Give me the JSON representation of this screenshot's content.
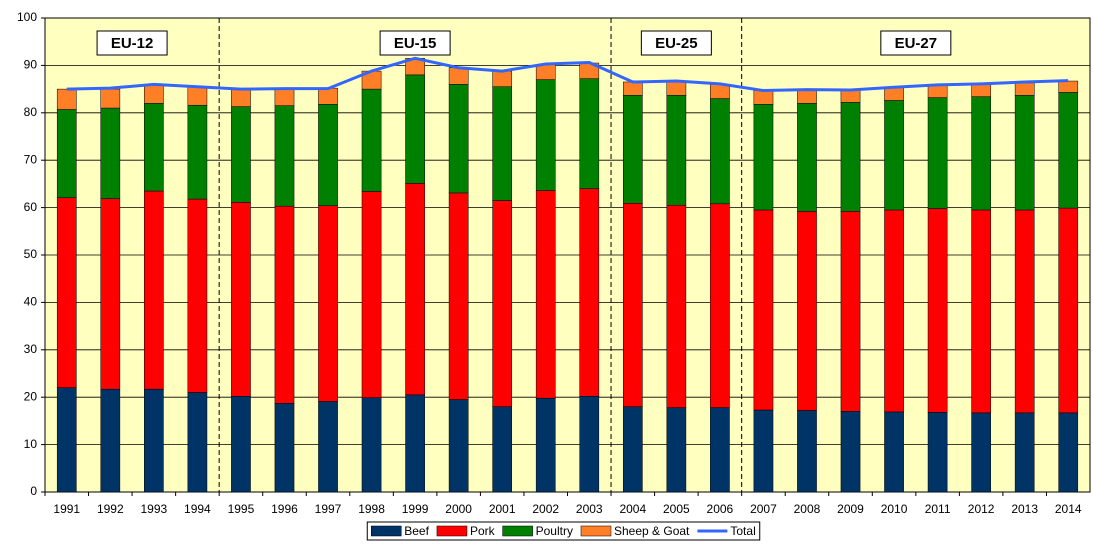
{
  "chart_data": {
    "type": "bar",
    "stacked": true,
    "categories": [
      "1991",
      "1992",
      "1993",
      "1994",
      "1995",
      "1996",
      "1997",
      "1998",
      "1999",
      "2000",
      "2001",
      "2002",
      "2003",
      "2004",
      "2005",
      "2006",
      "2007",
      "2008",
      "2009",
      "2010",
      "2011",
      "2012",
      "2013",
      "2014"
    ],
    "series": [
      {
        "name": "Beef",
        "color": "#003366",
        "values": [
          22,
          21.7,
          21.7,
          21,
          20.2,
          18.7,
          19.1,
          19.9,
          20.5,
          19.5,
          18,
          19.8,
          20.2,
          18,
          17.8,
          17.8,
          17.3,
          17.2,
          17,
          16.9,
          16.8,
          16.7,
          16.7,
          16.7
        ]
      },
      {
        "name": "Pork",
        "color": "#ff0000",
        "values": [
          40.1,
          40.2,
          41.8,
          40.8,
          40.9,
          41.6,
          41.3,
          43.5,
          44.6,
          43.6,
          43.5,
          43.8,
          43.8,
          42.9,
          42.7,
          43,
          42.2,
          42,
          42.2,
          42.6,
          43,
          42.8,
          42.8,
          43.2
        ]
      },
      {
        "name": "Poultry",
        "color": "#008000",
        "values": [
          18.6,
          19.1,
          18.5,
          19.8,
          20.2,
          21.2,
          21.4,
          21.6,
          22.9,
          22.9,
          24,
          23.4,
          23.2,
          22.8,
          23.2,
          22.2,
          22.3,
          22.8,
          23,
          23.1,
          23.4,
          23.9,
          24.2,
          24.4
        ]
      },
      {
        "name": "Sheep & Goat",
        "color": "#ff7f27",
        "values": [
          4.3,
          4,
          4,
          3.9,
          3.7,
          3.5,
          3.4,
          3.8,
          3.5,
          3.5,
          3.3,
          3.2,
          3.3,
          2.8,
          2.8,
          3,
          2.9,
          2.8,
          2.6,
          2.7,
          2.6,
          2.6,
          2.6,
          2.4
        ]
      },
      {
        "name": "Total",
        "type": "line",
        "color": "#3366ff",
        "values": [
          85,
          85.2,
          86,
          85.5,
          85,
          85.1,
          85.1,
          88.8,
          91.5,
          89.5,
          88.8,
          90.3,
          90.6,
          86.5,
          86.7,
          86.1,
          84.7,
          84.9,
          84.8,
          85.4,
          85.9,
          86.1,
          86.5,
          86.8
        ]
      }
    ],
    "regions": [
      {
        "label": "EU-12",
        "first": "1991",
        "last": "1994"
      },
      {
        "label": "EU-15",
        "first": "1995",
        "last": "2003"
      },
      {
        "label": "EU-25",
        "first": "2004",
        "last": "2006"
      },
      {
        "label": "EU-27",
        "first": "2007",
        "last": "2014"
      }
    ],
    "region_color": "#ffffc0",
    "ylim": [
      0,
      100
    ],
    "yticks": [
      0,
      10,
      20,
      30,
      40,
      50,
      60,
      70,
      80,
      90,
      100
    ],
    "grid": true,
    "legend": "bottom"
  }
}
